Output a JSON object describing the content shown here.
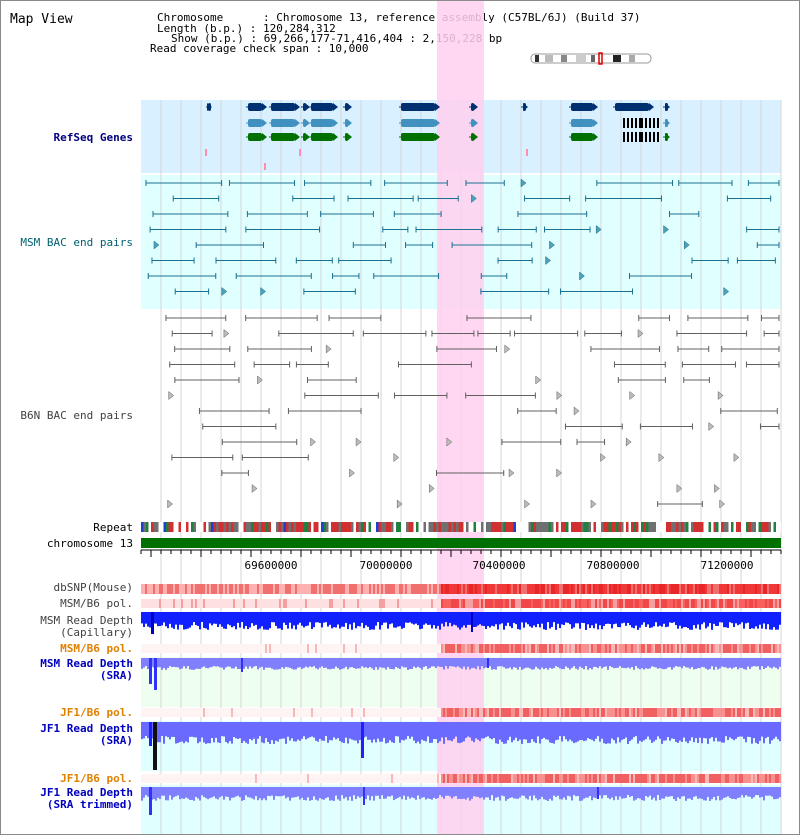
{
  "title": "Map View",
  "info": {
    "chromosome": "Chromosome      : Chromosome 13, reference assembly (C57BL/6J) (Build 37)",
    "length": "Length (b.p.) : 120,284,312",
    "show": "Show (b.p.) : 69,266,177-71,416,404 : 2,150,228 bp",
    "coverage": "Read coverage check span : 10,000"
  },
  "tracks": {
    "refseq": "RefSeq Genes",
    "msm_bac": "MSM BAC end pairs",
    "b6n_bac": "B6N BAC end pairs",
    "repeat": "Repeat",
    "chromosome": "chromosome 13",
    "dbsnp": "dbSNP(Mouse)",
    "msm_b6_pol": "MSM/B6 pol.",
    "msm_depth_cap_1": "MSM Read Depth",
    "msm_depth_cap_2": "(Capillary)",
    "msm_b6_pol2": "MSM/B6 pol.",
    "msm_depth_sra_1": "MSM Read Depth",
    "msm_depth_sra_2": "(SRA)",
    "jf1_b6_pol": "JF1/B6 pol.",
    "jf1_depth_sra_1": "JF1 Read Depth",
    "jf1_depth_sra_2": "(SRA)",
    "jf1_b6_pol2": "JF1/B6 pol.",
    "jf1_depth_trim_1": "JF1 Read Depth",
    "jf1_depth_trim_2": "(SRA trimmed)"
  },
  "ruler": [
    "69600000",
    "70000000",
    "70400000",
    "70800000",
    "71200000"
  ],
  "colors": {
    "highlight": "#ffd0f0",
    "refseq_bg": "#d8f0ff",
    "msm_bg": "#e0ffff",
    "gene_dark": "#003070",
    "gene_mid": "#4090c0",
    "gene_green": "#007000",
    "msm_line": "#1a7090",
    "b6n_line": "#606060",
    "chrom_bar": "#007000",
    "depth_blue": "#0000ff",
    "pol_red": "#f04040"
  }
}
